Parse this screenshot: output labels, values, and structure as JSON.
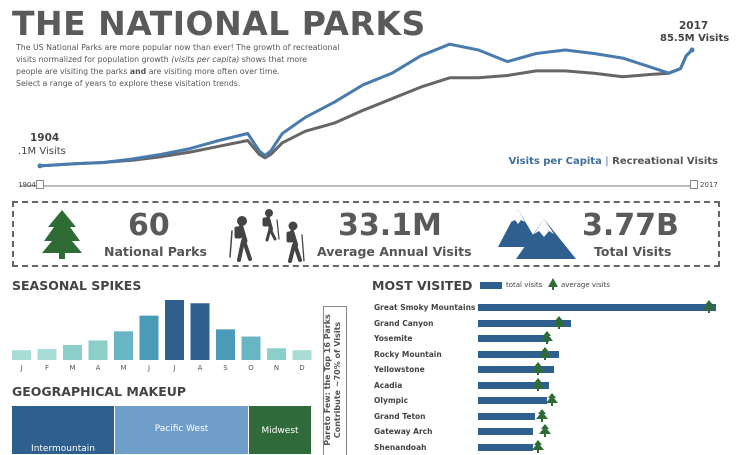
{
  "title": "THE NATIONAL PARKS",
  "intro": {
    "line1": "The US National Parks are more popular now than ever! The growth of recreational",
    "line2a": "visits normalized for population growth ",
    "line2b": "(visits per capita)",
    "line2c": " shows that more",
    "line3a": "people are visiting the parks ",
    "line3b": "and",
    "line3c": " are visiting more often over time.",
    "line4": "Select a range of years to explore these visitation trends."
  },
  "trend": {
    "start_year": "1904",
    "start_value": ".1M Visits",
    "end_year": "2017",
    "end_value": "85.5M Visits",
    "legend_a": "Visits per Capita",
    "legend_sep": "|",
    "legend_b": "Recreational Visits",
    "slider_start": "1904",
    "slider_end": "2017"
  },
  "kpis": {
    "parks_value": "60",
    "parks_label": "National Parks",
    "visits_value": "33.1M",
    "visits_label": "Average Annual Visits",
    "total_value": "3.77B",
    "total_label": "Total Visits",
    "parks_icon": "tree-icon",
    "visits_icon": "hikers-icon",
    "total_icon": "mountain-icon"
  },
  "seasonal": {
    "title": "SEASONAL SPIKES"
  },
  "geo": {
    "title": "GEOGRAPHICAL MAKEUP",
    "regions": [
      "Intermountain",
      "Pacific West",
      "Midwest"
    ]
  },
  "most_visited": {
    "title": "MOST VISITED",
    "legend_total": "total visits",
    "legend_avg": "average visits",
    "pareto_line1": "Pareto Few: the Top 16 Parks",
    "pareto_line2": "Contribute ~70% of Visits"
  },
  "colors": {
    "per_capita": "#4a7bad",
    "recreational": "#666666",
    "bar_dark": "#2f5f8f",
    "tree": "#2e6b35",
    "midwest": "#2f6b3a"
  },
  "chart_data": [
    {
      "type": "line",
      "x": [
        1904,
        1910,
        1915,
        1920,
        1925,
        1930,
        1935,
        1940,
        1942,
        1943,
        1944,
        1946,
        1950,
        1955,
        1960,
        1965,
        1970,
        1975,
        1980,
        1985,
        1990,
        1995,
        2000,
        2005,
        2010,
        2013,
        2015,
        2016,
        2017
      ],
      "series": [
        {
          "name": "Visits per Capita",
          "values": [
            0.001,
            0.02,
            0.03,
            0.06,
            0.1,
            0.15,
            0.22,
            0.28,
            0.13,
            0.09,
            0.13,
            0.28,
            0.42,
            0.55,
            0.7,
            0.8,
            0.95,
            1.05,
            1.0,
            0.9,
            0.97,
            1.0,
            0.97,
            0.93,
            0.85,
            0.8,
            0.84,
            0.95,
            1.0
          ]
        },
        {
          "name": "Recreational Visits",
          "values": [
            0.001,
            0.02,
            0.03,
            0.05,
            0.08,
            0.12,
            0.17,
            0.22,
            0.1,
            0.07,
            0.1,
            0.2,
            0.3,
            0.37,
            0.48,
            0.58,
            0.68,
            0.76,
            0.76,
            0.78,
            0.82,
            0.82,
            0.8,
            0.77,
            0.79,
            0.8,
            0.84,
            0.95,
            1.0
          ]
        }
      ]
    },
    {
      "type": "bar",
      "categories": [
        "J",
        "F",
        "M",
        "A",
        "M",
        "J",
        "J",
        "A",
        "S",
        "O",
        "N",
        "D"
      ],
      "values": [
        1.5,
        1.7,
        2.3,
        3.0,
        4.4,
        6.8,
        9.2,
        8.7,
        4.7,
        3.6,
        1.8,
        1.5
      ],
      "colors": [
        "#a8dcd6",
        "#a8dcd6",
        "#8ccfc9",
        "#8ccfc9",
        "#6ab5c4",
        "#4a9bb8",
        "#2f5f8f",
        "#2f5f8f",
        "#4a9bb8",
        "#6ab5c4",
        "#8ccfc9",
        "#a8dcd6"
      ]
    },
    {
      "type": "bar",
      "categories": [
        "Great Smoky Mountains",
        "Grand Canyon",
        "Yosemite",
        "Rocky Mountain",
        "Yellowstone",
        "Acadia",
        "Olympic",
        "Grand Teton",
        "Gateway Arch",
        "Shenandoah"
      ],
      "series": [
        {
          "name": "total visits",
          "values": [
            100,
            39,
            30,
            34,
            32,
            30,
            29,
            24,
            23,
            23
          ]
        },
        {
          "name": "average visits",
          "values": [
            97,
            34,
            29,
            28,
            25,
            25,
            31,
            27,
            28,
            25
          ]
        }
      ]
    },
    {
      "type": "bar",
      "categories": [
        "Intermountain",
        "Pacific West",
        "Midwest"
      ],
      "values": [
        44,
        37,
        19
      ]
    }
  ]
}
